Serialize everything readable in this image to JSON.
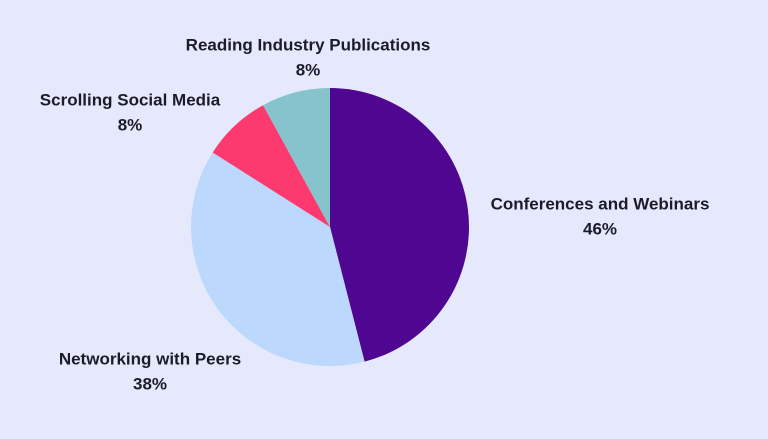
{
  "chart_data": {
    "type": "pie",
    "categories": [
      "Conferences and Webinars",
      "Networking with Peers",
      "Scrolling Social Media",
      "Reading Industry Publications"
    ],
    "values": [
      46,
      38,
      8,
      8
    ],
    "value_labels": [
      "46%",
      "38%",
      "8%",
      "8%"
    ],
    "colors": [
      "#4f0792",
      "#bcd8fc",
      "#fc3a6f",
      "#87c3cc"
    ]
  }
}
